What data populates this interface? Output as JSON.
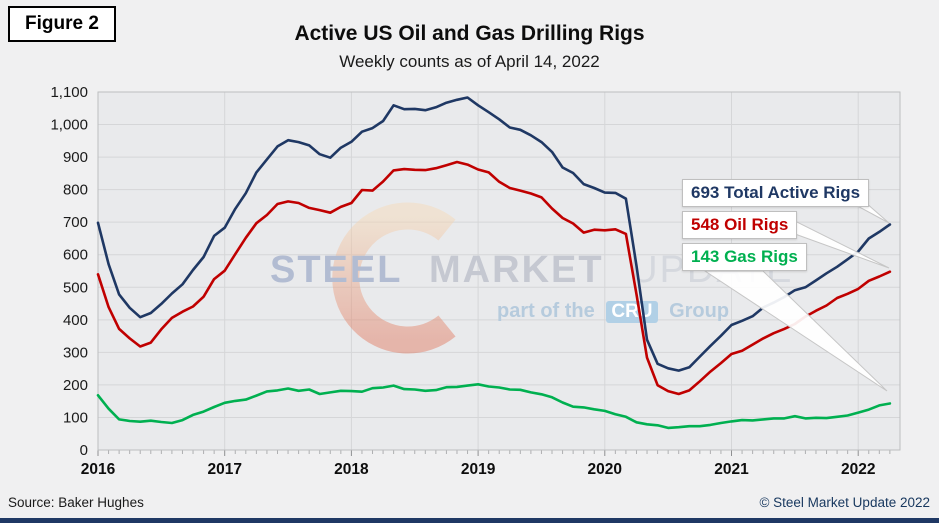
{
  "figure_label": "Figure 2",
  "title": "Active US Oil and Gas Drilling Rigs",
  "subtitle": "Weekly counts as of April 14, 2022",
  "watermark": {
    "word1": "STEEL",
    "word2": "MARKET",
    "word3": "UPDATE",
    "tagline_prefix": "part of the",
    "tagline_box": "CRU",
    "tagline_suffix": "Group"
  },
  "annotations": [
    {
      "label": "693 Total Active Rigs",
      "value": 693,
      "color": "#1f3864"
    },
    {
      "label": "548 Oil Rigs",
      "value": 548,
      "color": "#c00000"
    },
    {
      "label": "143 Gas Rigs",
      "value": 143,
      "color": "#00b050"
    }
  ],
  "footer": {
    "source": "Source: Baker Hughes",
    "copyright": "© Steel Market Update 2022"
  },
  "accent_bar_color": "#1f3864",
  "chart_data": {
    "type": "line",
    "title": "Active US Oil and Gas Drilling Rigs",
    "subtitle": "Weekly counts as of April 14, 2022",
    "x_unit": "monthly samples, Jan 2016 through mid-April 2022",
    "x_start_year": 2016,
    "samples_per_year": 12,
    "x_tick_values": [
      2016,
      2017,
      2018,
      2019,
      2020,
      2021,
      2022
    ],
    "x_tick_labels": [
      "2016",
      "2017",
      "2018",
      "2019",
      "2020",
      "2021",
      "2022"
    ],
    "y_tick_values": [
      0,
      100,
      200,
      300,
      400,
      500,
      600,
      700,
      800,
      900,
      1000,
      1100
    ],
    "y_tick_labels": [
      "0",
      "100",
      "200",
      "300",
      "400",
      "500",
      "600",
      "700",
      "800",
      "900",
      "1,000",
      "1,100"
    ],
    "ylim": [
      0,
      1100
    ],
    "grid": true,
    "legend_position": "callout-labels-right",
    "series": [
      {
        "name": "Total Active Rigs",
        "color": "#1f3864",
        "final_value": 693,
        "values": [
          698,
          571,
          478,
          437,
          408,
          421,
          449,
          481,
          509,
          553,
          593,
          658,
          683,
          741,
          789,
          853,
          893,
          933,
          952,
          946,
          936,
          909,
          898,
          929,
          947,
          978,
          989,
          1011,
          1059,
          1047,
          1048,
          1044,
          1053,
          1067,
          1076,
          1083,
          1059,
          1038,
          1016,
          991,
          984,
          967,
          946,
          916,
          868,
          851,
          817,
          805,
          791,
          790,
          772,
          566,
          339,
          265,
          251,
          244,
          254,
          287,
          320,
          351,
          384,
          397,
          411,
          438,
          453,
          470,
          491,
          500,
          521,
          543,
          563,
          586,
          610,
          650,
          670,
          693
        ]
      },
      {
        "name": "Oil Rigs",
        "color": "#c00000",
        "final_value": 548,
        "values": [
          540,
          439,
          372,
          343,
          318,
          330,
          371,
          406,
          425,
          441,
          471,
          525,
          551,
          602,
          652,
          697,
          722,
          756,
          764,
          759,
          744,
          737,
          729,
          747,
          759,
          799,
          797,
          825,
          859,
          863,
          861,
          860,
          866,
          875,
          885,
          877,
          862,
          853,
          824,
          805,
          797,
          788,
          776,
          742,
          713,
          696,
          668,
          677,
          675,
          678,
          664,
          478,
          284,
          199,
          181,
          172,
          183,
          211,
          241,
          267,
          295,
          305,
          324,
          343,
          359,
          372,
          387,
          410,
          428,
          444,
          467,
          480,
          495,
          520,
          533,
          548
        ]
      },
      {
        "name": "Gas Rigs",
        "color": "#00b050",
        "final_value": 143,
        "values": [
          168,
          127,
          94,
          89,
          87,
          90,
          86,
          83,
          92,
          108,
          118,
          132,
          145,
          151,
          155,
          167,
          180,
          183,
          189,
          182,
          186,
          172,
          177,
          182,
          181,
          179,
          190,
          192,
          198,
          187,
          186,
          182,
          184,
          193,
          194,
          198,
          202,
          195,
          192,
          186,
          185,
          177,
          171,
          162,
          146,
          133,
          131,
          125,
          120,
          110,
          102,
          85,
          79,
          76,
          68,
          70,
          73,
          73,
          77,
          83,
          88,
          92,
          91,
          94,
          97,
          97,
          104,
          97,
          99,
          98,
          102,
          106,
          115,
          124,
          137,
          143
        ]
      }
    ]
  }
}
